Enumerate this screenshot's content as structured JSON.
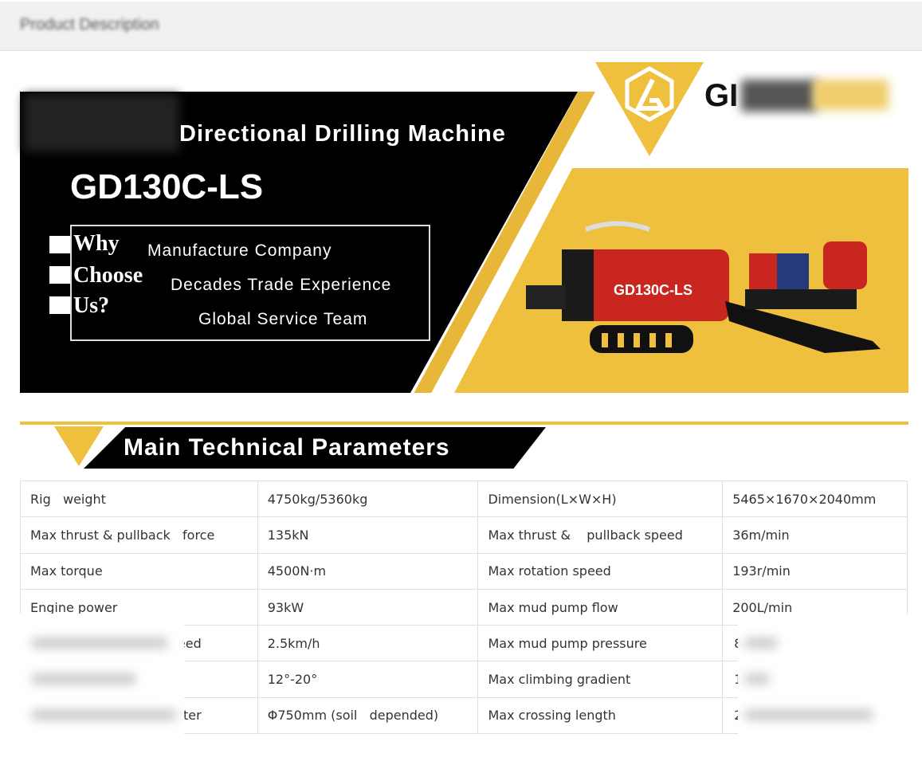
{
  "header": {
    "blurred_label": "Product Description"
  },
  "banner": {
    "title": "Directional Drilling Machine",
    "model": "GD130C-LS",
    "why": [
      "Why",
      "Choose",
      "Us?"
    ],
    "features": [
      "Manufacture Company",
      "Decades Trade Experience",
      "Global Service Team"
    ],
    "logo_text": "GI",
    "machine_label": "GD130C-LS",
    "colors": {
      "yellow": "#efbf3e",
      "black": "#000000",
      "machine_red": "#c8261f"
    }
  },
  "section": {
    "heading": "Main  Technical  Parameters"
  },
  "table": {
    "rows": [
      [
        "Rig   weight",
        "4750kg/5360kg",
        "Dimension(L×W×H)",
        "5465×1670×2040mm"
      ],
      [
        "Max thrust & pullback   force",
        "135kN",
        "Max thrust &    pullback speed",
        "36m/min"
      ],
      [
        "Max torque",
        "4500N·m",
        "Max rotation speed",
        "193r/min"
      ],
      [
        "Engine power",
        "93kW",
        "Max mud pump flow",
        "200L/min"
      ],
      [
        "eed",
        "2.5km/h",
        "Max mud pump pressure",
        "8"
      ],
      [
        "",
        "12°-20°",
        "Max climbing gradient",
        "1"
      ],
      [
        "neter",
        "Φ750mm (soil   depended)",
        "Max crossing length",
        "2"
      ]
    ]
  }
}
